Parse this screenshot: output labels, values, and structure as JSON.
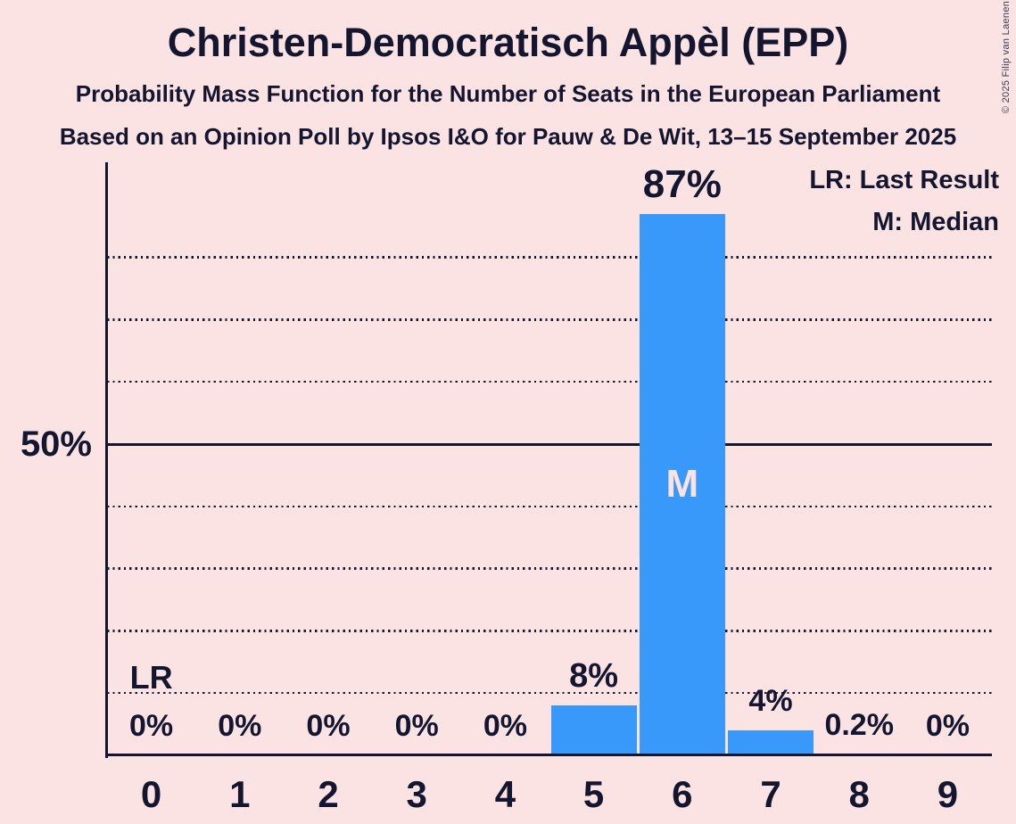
{
  "header": {
    "title": "Christen-Democratisch Appèl (EPP)",
    "subtitle1": "Probability Mass Function for the Number of Seats in the European Parliament",
    "subtitle2": "Based on an Opinion Poll by Ipsos I&O for Pauw & De Wit, 13–15 September 2025"
  },
  "copyright": "© 2025 Filip van Laenen",
  "legend": {
    "lr": "LR: Last Result",
    "m": "M: Median"
  },
  "chart_data": {
    "type": "bar",
    "title": "Christen-Democratisch Appèl (EPP)",
    "subtitle": "Probability Mass Function for the Number of Seats in the European Parliament",
    "source_line": "Based on an Opinion Poll by Ipsos I&O for Pauw & De Wit, 13–15 September 2025",
    "categories": [
      "0",
      "1",
      "2",
      "3",
      "4",
      "5",
      "6",
      "7",
      "8",
      "9"
    ],
    "values": [
      0,
      0,
      0,
      0,
      0,
      8,
      87,
      4,
      0.2,
      0
    ],
    "value_labels": [
      "0%",
      "0%",
      "0%",
      "0%",
      "0%",
      "8%",
      "87%",
      "4%",
      "0.2%",
      "0%"
    ],
    "xlabel": "",
    "ylabel": "",
    "ylim": [
      0,
      95
    ],
    "ytick": {
      "value": 50,
      "label": "50%"
    },
    "gridlines_pct": [
      10,
      20,
      30,
      40,
      60,
      70,
      80
    ],
    "solid_line_pct": 50,
    "grid": "dotted-horizontal",
    "legend_position": "top-right",
    "legend_entries": [
      "LR: Last Result",
      "M: Median"
    ],
    "annotations": {
      "last_result_label": "LR",
      "last_result_seat": 0,
      "median_label": "M",
      "median_seat": 6
    },
    "colors": {
      "bar": "#3999fb",
      "background": "#fbe3e4",
      "text": "#141630",
      "median_text": "#fbe3e4"
    }
  }
}
